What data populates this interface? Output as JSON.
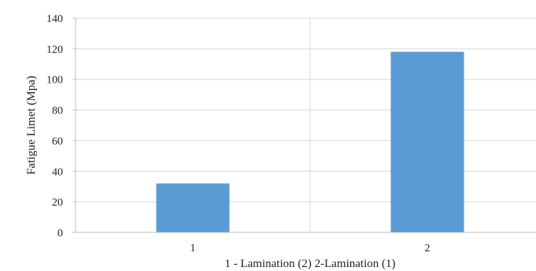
{
  "chart_data": {
    "type": "bar",
    "categories": [
      "1",
      "2"
    ],
    "values": [
      32,
      118
    ],
    "title": "",
    "xlabel": "1 - Lamination  (2)   2-Lamination  (1)",
    "ylabel": "Fatigue Limet  (Mpa)",
    "ylim": [
      0,
      140
    ],
    "yticks": [
      0,
      20,
      40,
      60,
      80,
      100,
      120,
      140
    ],
    "grid": true,
    "legend": "none",
    "bar_color": "#5b9bd5",
    "grid_color": "#d9d9d9",
    "axis_color": "#bfbfbf"
  }
}
